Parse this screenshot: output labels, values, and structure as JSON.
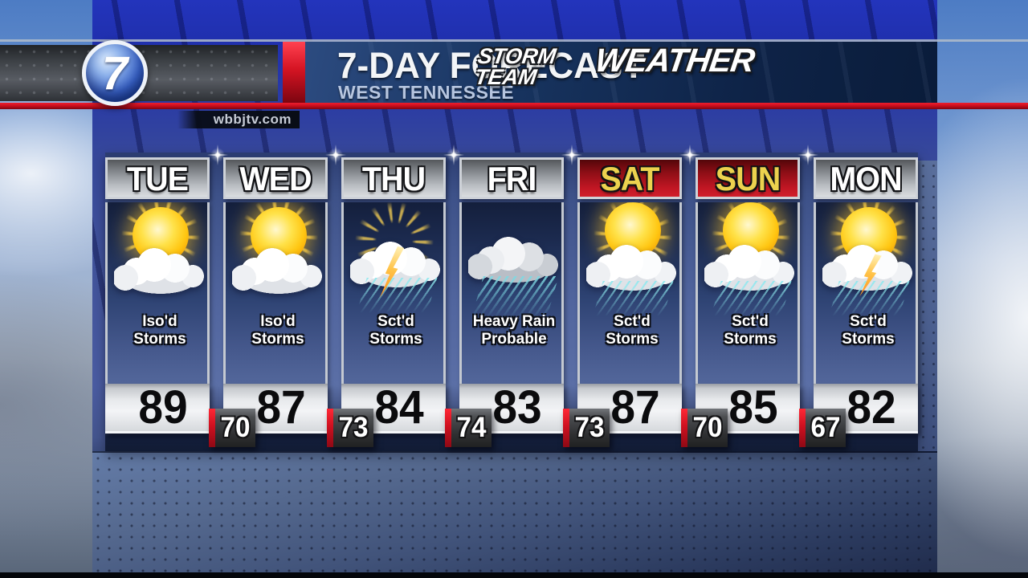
{
  "station": {
    "logo_number": "7",
    "brand_top": "STORM TEAM",
    "brand_bottom": "WEATHER",
    "website": "wbbjtv.com"
  },
  "header": {
    "title": "7-DAY FORECAST",
    "subtitle": "WEST TENNESSEE"
  },
  "days": [
    {
      "label": "TUE",
      "highlight": false,
      "icon": "sun-cloud",
      "condition": "Iso'd\nStorms",
      "high": "89",
      "low_after": "70"
    },
    {
      "label": "WED",
      "highlight": false,
      "icon": "sun-cloud",
      "condition": "Iso'd\nStorms",
      "high": "87",
      "low_after": "73"
    },
    {
      "label": "THU",
      "highlight": false,
      "icon": "cloud-lightning-rain",
      "condition": "Sct'd\nStorms",
      "high": "84",
      "low_after": "74"
    },
    {
      "label": "FRI",
      "highlight": false,
      "icon": "heavy-rain",
      "condition": "Heavy Rain\nProbable",
      "high": "83",
      "low_after": "73"
    },
    {
      "label": "SAT",
      "highlight": true,
      "icon": "sun-cloud-rain",
      "condition": "Sct'd\nStorms",
      "high": "87",
      "low_after": "70"
    },
    {
      "label": "SUN",
      "highlight": true,
      "icon": "sun-cloud-rain",
      "condition": "Sct'd\nStorms",
      "high": "85",
      "low_after": "67"
    },
    {
      "label": "MON",
      "highlight": false,
      "icon": "sun-cloud-rain-lightning",
      "condition": "Sct'd\nStorms",
      "high": "82",
      "low_after": null
    }
  ],
  "colors": {
    "accent_red": "#c8101e",
    "banner_navy": "#122b52",
    "highlight_header_red": "#b01320",
    "day_header_silver": "#c9ccd1",
    "highlight_text_yellow": "#ecd24e",
    "background_blue": "#42549c"
  }
}
